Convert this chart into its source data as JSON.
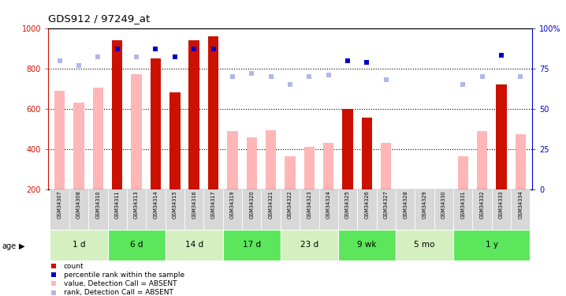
{
  "title": "GDS912 / 97249_at",
  "samples": [
    "GSM34307",
    "GSM34308",
    "GSM34310",
    "GSM34311",
    "GSM34313",
    "GSM34314",
    "GSM34315",
    "GSM34316",
    "GSM34317",
    "GSM34319",
    "GSM34320",
    "GSM34321",
    "GSM34322",
    "GSM34323",
    "GSM34324",
    "GSM34325",
    "GSM34326",
    "GSM34327",
    "GSM34328",
    "GSM34329",
    "GSM34330",
    "GSM34331",
    "GSM34332",
    "GSM34333",
    "GSM34334"
  ],
  "count_present": [
    null,
    null,
    null,
    940,
    null,
    850,
    680,
    940,
    960,
    null,
    null,
    null,
    null,
    null,
    null,
    600,
    555,
    null,
    null,
    null,
    null,
    null,
    null,
    720,
    null
  ],
  "count_absent": [
    690,
    630,
    705,
    null,
    770,
    null,
    null,
    null,
    null,
    490,
    460,
    495,
    365,
    410,
    430,
    null,
    null,
    430,
    null,
    null,
    null,
    365,
    490,
    null,
    475
  ],
  "rank_present": [
    null,
    null,
    null,
    87,
    null,
    87,
    82,
    87,
    87,
    null,
    null,
    null,
    null,
    null,
    null,
    80,
    79,
    null,
    null,
    null,
    null,
    null,
    null,
    83,
    null
  ],
  "rank_absent": [
    80,
    77,
    82,
    null,
    82,
    null,
    null,
    null,
    null,
    70,
    72,
    70,
    65,
    70,
    71,
    null,
    null,
    68,
    null,
    null,
    null,
    65,
    70,
    null,
    70
  ],
  "age_groups": [
    {
      "label": "1 d",
      "start": 0,
      "end": 3,
      "color": "#d4f0c0"
    },
    {
      "label": "6 d",
      "start": 3,
      "end": 6,
      "color": "#5ce65c"
    },
    {
      "label": "14 d",
      "start": 6,
      "end": 9,
      "color": "#d4f0c0"
    },
    {
      "label": "17 d",
      "start": 9,
      "end": 12,
      "color": "#5ce65c"
    },
    {
      "label": "23 d",
      "start": 12,
      "end": 15,
      "color": "#d4f0c0"
    },
    {
      "label": "9 wk",
      "start": 15,
      "end": 18,
      "color": "#5ce65c"
    },
    {
      "label": "5 mo",
      "start": 18,
      "end": 21,
      "color": "#d4f0c0"
    },
    {
      "label": "1 y",
      "start": 21,
      "end": 25,
      "color": "#5ce65c"
    }
  ],
  "ylim_left": [
    200,
    1000
  ],
  "ylim_right": [
    0,
    100
  ],
  "yticks_left": [
    200,
    400,
    600,
    800,
    1000
  ],
  "yticks_right": [
    0,
    25,
    50,
    75,
    100
  ],
  "bar_width": 0.55,
  "color_count_present": "#cc1100",
  "color_count_absent": "#ffb6b6",
  "color_rank_present": "#0000cc",
  "color_rank_absent": "#b0b8e8"
}
